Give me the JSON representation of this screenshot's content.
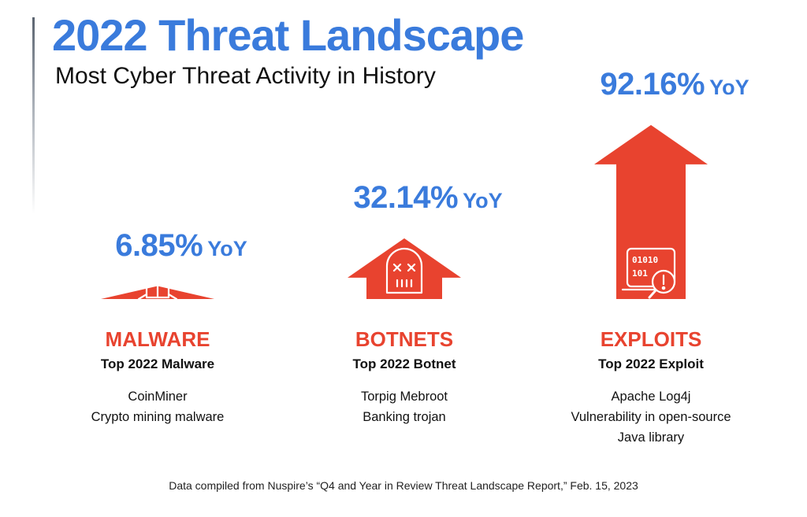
{
  "header": {
    "title": "2022 Threat Landscape",
    "subtitle": "Most Cyber Threat Activity in History"
  },
  "chart_data": {
    "type": "bar",
    "title": "2022 Threat Landscape",
    "subtitle": "Most Cyber Threat Activity in History",
    "unit_suffix": "YoY",
    "categories": [
      "MALWARE",
      "BOTNETS",
      "EXPLOITS"
    ],
    "values": [
      6.85,
      32.14,
      92.16
    ],
    "value_labels": [
      "6.85%",
      "32.14%",
      "92.16%"
    ],
    "ylim": [
      0,
      100
    ],
    "grid": false,
    "legend": "none",
    "icons": [
      "bug-icon",
      "robot-icon",
      "laptop-alert-icon"
    ],
    "details": [
      {
        "heading": "Top 2022 Malware",
        "lines": [
          "CoinMiner",
          "Crypto mining malware"
        ]
      },
      {
        "heading": "Top 2022 Botnet",
        "lines": [
          "Torpig Mebroot",
          "Banking trojan"
        ]
      },
      {
        "heading": "Top 2022 Exploit",
        "lines": [
          "Apache Log4j",
          "Vulnerability in open-source",
          "Java library"
        ]
      }
    ],
    "colors": {
      "arrow": "#e8432f",
      "value": "#3a7bdc",
      "icon_stroke": "#ffffff"
    }
  },
  "footer": {
    "note": "Data compiled from Nuspire’s “Q4 and Year in Review Threat Landscape Report,” Feb. 15, 2023"
  }
}
